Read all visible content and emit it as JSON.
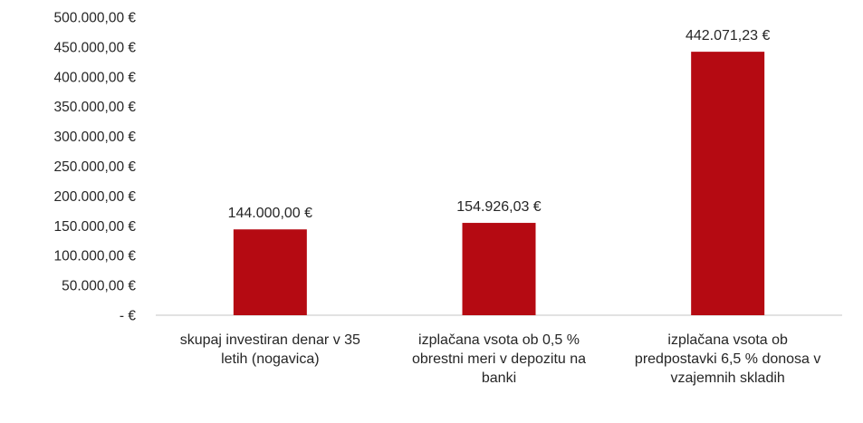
{
  "chart_data": {
    "type": "bar",
    "categories": [
      "skupaj investiran denar v 35 letih (nogavica)",
      "izplačana vsota ob 0,5 % obrestni meri v depozitu na banki",
      "izplačana vsota ob predpostavki 6,5 % donosa v vzajemnih skladih"
    ],
    "category_lines": [
      [
        "skupaj investiran denar v 35",
        "letih (nogavica)"
      ],
      [
        "izplačana vsota ob 0,5 %",
        "obrestni meri v depozitu na",
        "banki"
      ],
      [
        "izplačana vsota ob",
        "predpostavki 6,5 % donosa v",
        "vzajemnih skladih"
      ]
    ],
    "values": [
      144000.0,
      154926.03,
      442071.23
    ],
    "data_labels": [
      "144.000,00 €",
      "154.926,03 €",
      "442.071,23 €"
    ],
    "y_ticks": [
      0,
      50000,
      100000,
      150000,
      200000,
      250000,
      300000,
      350000,
      400000,
      450000,
      500000
    ],
    "y_tick_labels": [
      "-   €",
      "50.000,00 €",
      "100.000,00 €",
      "150.000,00 €",
      "200.000,00 €",
      "250.000,00 €",
      "300.000,00 €",
      "350.000,00 €",
      "400.000,00 €",
      "450.000,00 €",
      "500.000,00 €"
    ],
    "ylim": [
      0,
      500000
    ],
    "grid": false,
    "legend": "none",
    "title": "",
    "xlabel": "",
    "ylabel": "",
    "bar_color": "#B50A12",
    "axis_color": "#D9D9D9",
    "text_color": "#262626"
  }
}
